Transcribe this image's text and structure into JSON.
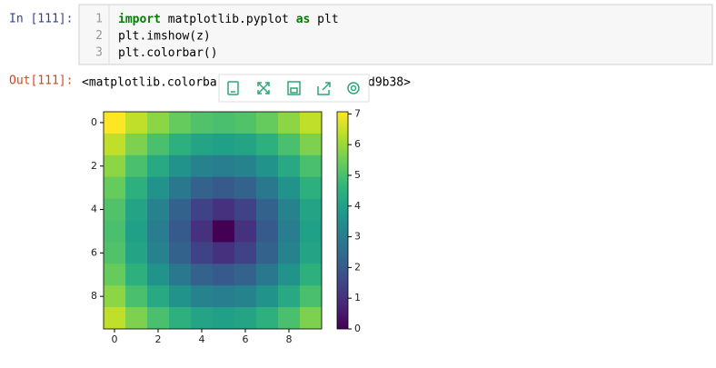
{
  "input_prompt": "In [111]:",
  "code_lines": [
    {
      "number": "1",
      "segments": [
        {
          "text": "import",
          "keyword": true
        },
        {
          "text": " matplotlib.pyplot ",
          "keyword": false
        },
        {
          "text": "as",
          "keyword": true
        },
        {
          "text": " plt",
          "keyword": false
        }
      ]
    },
    {
      "number": "2",
      "segments": [
        {
          "text": "plt.imshow(z)",
          "keyword": false
        }
      ]
    },
    {
      "number": "3",
      "segments": [
        {
          "text": "plt.colorbar()",
          "keyword": false
        }
      ]
    }
  ],
  "output_prompt": "Out[111]:",
  "output_text": [
    "<matplotlib.colorbar",
    "d9b38>"
  ],
  "chart_data": {
    "type": "heatmap",
    "colormap": "viridis",
    "values": [
      [
        7.07,
        6.4,
        5.83,
        5.39,
        5.1,
        5,
        5.1,
        5.39,
        5.83,
        6.4
      ],
      [
        6.4,
        5.66,
        5,
        4.47,
        4.12,
        4,
        4.12,
        4.47,
        5,
        5.66
      ],
      [
        5.83,
        5,
        4.24,
        3.61,
        3.16,
        3,
        3.16,
        3.61,
        4.24,
        5
      ],
      [
        5.39,
        4.47,
        3.61,
        2.83,
        2.24,
        2,
        2.24,
        2.83,
        3.61,
        4.47
      ],
      [
        5.1,
        4.12,
        3.16,
        2.24,
        1.41,
        1,
        1.41,
        2.24,
        3.16,
        4.12
      ],
      [
        5,
        4,
        3,
        2,
        1,
        0,
        1,
        2,
        3,
        4
      ],
      [
        5.1,
        4.12,
        3.16,
        2.24,
        1.41,
        1,
        1.41,
        2.24,
        3.16,
        4.12
      ],
      [
        5.39,
        4.47,
        3.61,
        2.83,
        2.24,
        2,
        2.24,
        2.83,
        3.61,
        4.47
      ],
      [
        5.83,
        5,
        4.24,
        3.61,
        3.16,
        3,
        3.16,
        3.61,
        4.24,
        5
      ],
      [
        6.4,
        5.66,
        5,
        4.47,
        4.12,
        4,
        4.12,
        4.47,
        5,
        5.66
      ]
    ],
    "xlim": [
      -0.5,
      9.5
    ],
    "ylim": [
      9.5,
      -0.5
    ],
    "xticks": [
      0,
      2,
      4,
      6,
      8
    ],
    "yticks": [
      0,
      2,
      4,
      6,
      8
    ],
    "clim": [
      0,
      7.07
    ],
    "cticks": [
      0,
      1,
      2,
      3,
      4,
      5,
      6,
      7
    ]
  }
}
